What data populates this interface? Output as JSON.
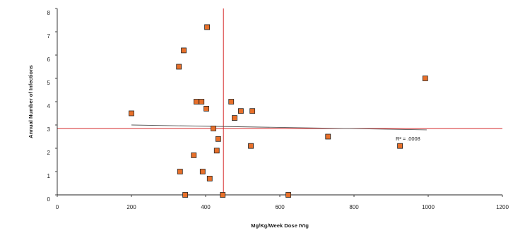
{
  "chart_data": {
    "type": "scatter",
    "xlabel": "Mg/Kg/Week Dose IVIg",
    "ylabel": "Annual Number of Infections",
    "xlim": [
      0,
      1200
    ],
    "ylim": [
      0,
      8
    ],
    "x_ticks": [
      0,
      200,
      400,
      600,
      800,
      1000,
      1200
    ],
    "y_ticks": [
      0,
      1,
      2,
      3,
      4,
      5,
      6,
      7,
      8
    ],
    "grid": false,
    "series": [
      {
        "x": [
          200,
          328,
          331,
          341,
          345,
          368,
          375,
          389,
          392,
          402,
          404,
          411,
          421,
          430,
          434,
          446,
          469,
          478,
          495,
          522,
          526,
          623,
          730,
          924,
          992
        ],
        "y": [
          3.5,
          5.5,
          1.0,
          6.2,
          0,
          1.7,
          4.0,
          4.0,
          1.0,
          3.7,
          7.2,
          0.7,
          2.85,
          1.9,
          2.4,
          0,
          4.0,
          3.3,
          3.6,
          2.1,
          3.6,
          0,
          2.5,
          2.1,
          5.0
        ]
      }
    ],
    "trendline": {
      "type": "linear",
      "x": [
        200,
        996
      ],
      "y": [
        3.0,
        2.79
      ],
      "label": "R² = .0008"
    },
    "reference_lines": [
      {
        "orientation": "horizontal",
        "value": 2.85
      },
      {
        "orientation": "vertical",
        "value": 448
      }
    ],
    "colors": {
      "marker_fill": "#e8702a",
      "marker_stroke": "#222222",
      "reference_line": "#d62728",
      "trendline": "#555555",
      "axis": "#222222"
    }
  }
}
